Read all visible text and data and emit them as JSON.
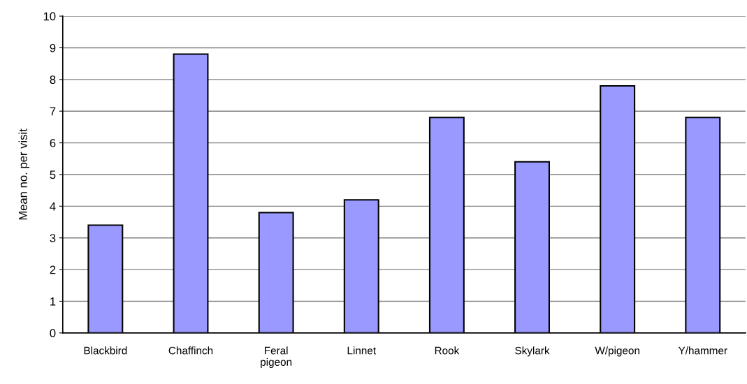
{
  "chart_data": {
    "type": "bar",
    "ylabel": "Mean no. per visit",
    "categories": [
      "Blackbird",
      "Chaffinch",
      "Feral pigeon",
      "Linnet",
      "Rook",
      "Skylark",
      "W/pigeon",
      "Y/hammer"
    ],
    "values": [
      3.4,
      8.8,
      3.8,
      4.2,
      6.8,
      5.4,
      7.8,
      6.8
    ],
    "color": "#9999ff",
    "ylim": [
      0,
      10
    ],
    "yticks": [
      0,
      1,
      2,
      3,
      4,
      5,
      6,
      7,
      8,
      9,
      10
    ],
    "grid": "y"
  }
}
